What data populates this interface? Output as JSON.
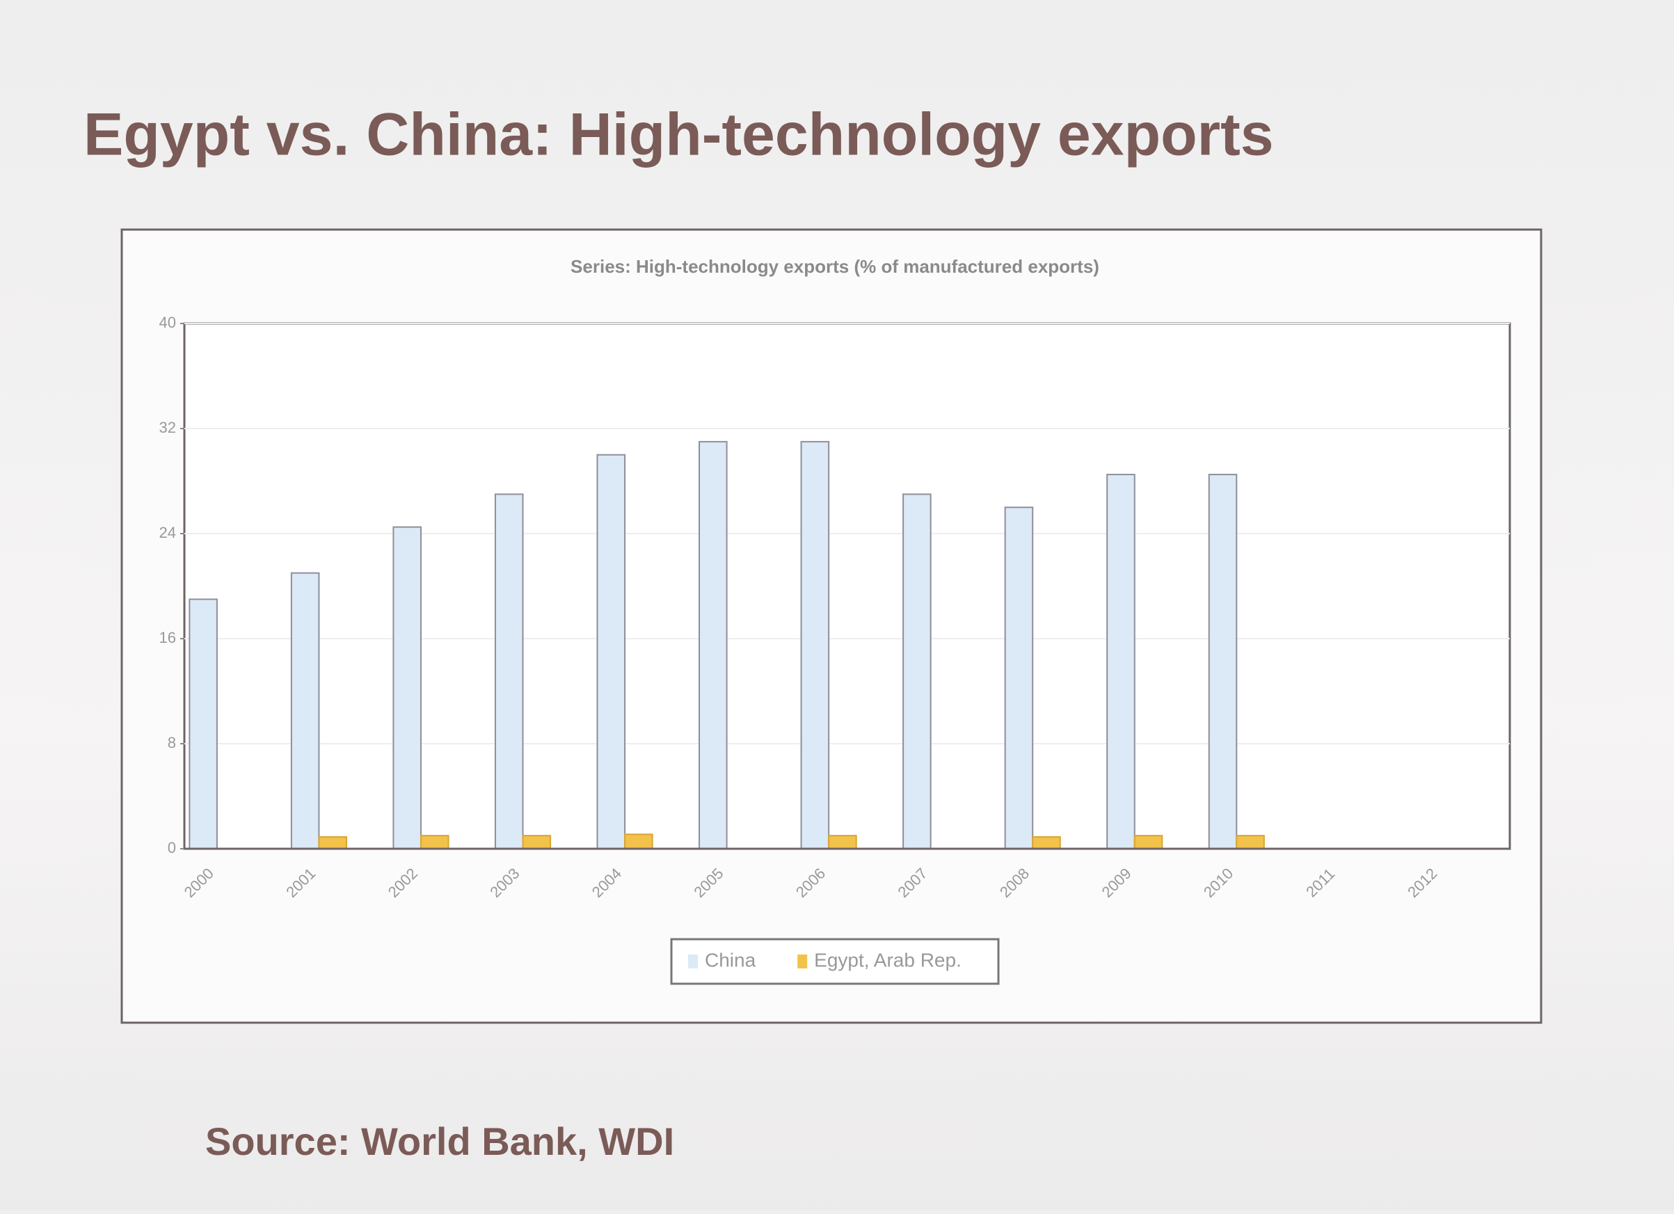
{
  "slide": {
    "title": "Egypt vs. China: High-technology exports",
    "source": "Source: World Bank, WDI"
  },
  "chart_data": {
    "type": "bar",
    "title": "Series: High-technology exports (% of manufactured exports)",
    "categories": [
      "2000",
      "2001",
      "2002",
      "2003",
      "2004",
      "2005",
      "2006",
      "2007",
      "2008",
      "2009",
      "2010",
      "2011",
      "2012"
    ],
    "series": [
      {
        "name": "China",
        "color": "#dce9f6",
        "values": [
          19,
          21,
          24.5,
          27,
          30,
          31,
          31,
          27,
          26,
          28.5,
          28.5,
          null,
          null
        ]
      },
      {
        "name": "Egypt, Arab Rep.",
        "color": "#f2c24a",
        "values": [
          null,
          0.9,
          1,
          1,
          1.1,
          null,
          1,
          null,
          0.9,
          1,
          1,
          null,
          null
        ]
      }
    ],
    "ylim": [
      0,
      40
    ],
    "yticks": [
      0,
      8,
      16,
      24,
      32,
      40
    ],
    "grid": true
  }
}
